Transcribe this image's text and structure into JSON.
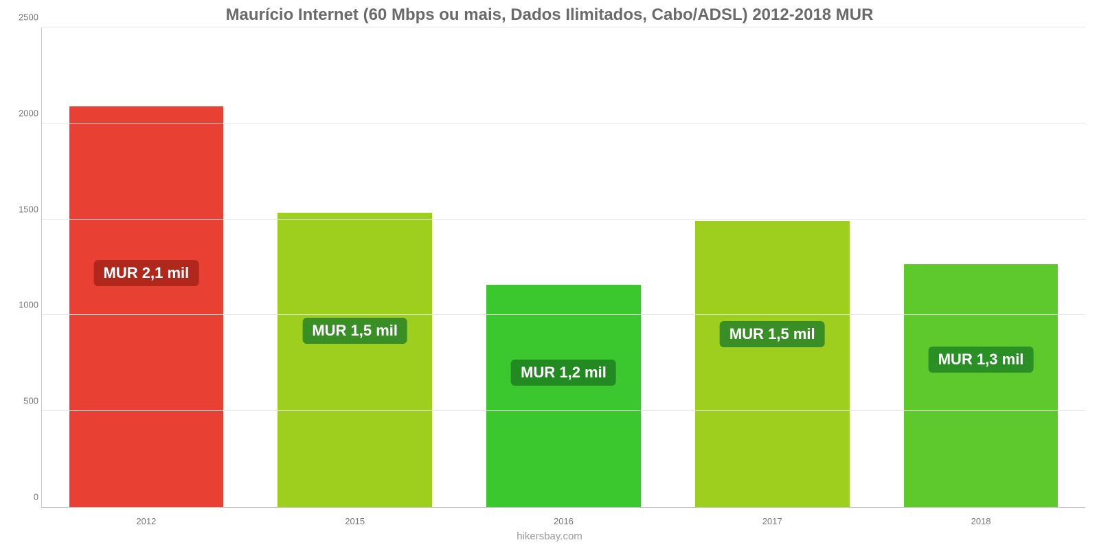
{
  "chart": {
    "type": "bar",
    "title": "Maurício Internet (60 Mbps ou mais, Dados Ilimitados, Cabo/ADSL) 2012-2018 MUR",
    "title_color": "#6a6a6a",
    "title_fontsize": 24,
    "caption": "hikersbay.com",
    "caption_color": "#9a9a9a",
    "caption_fontsize": 15,
    "background_color": "#ffffff",
    "grid_color": "#e6e6e6",
    "axis_color": "#c8c8c8",
    "tick_color": "#777777",
    "tick_fontsize": 13,
    "ylim": [
      0,
      2500
    ],
    "ytick_step": 500,
    "yticks": [
      "0",
      "500",
      "1000",
      "1500",
      "2000",
      "2500"
    ],
    "bar_width_pct": 74,
    "label_fontsize": 22,
    "label_text_color": "#ffffff",
    "bars": [
      {
        "category": "2012",
        "value": 2090,
        "color": "#e84033",
        "label": "MUR 2,1 mil",
        "label_bg": "#b0271c",
        "label_y": 1220
      },
      {
        "category": "2015",
        "value": 1535,
        "color": "#9ecf1f",
        "label": "MUR 1,5 mil",
        "label_bg": "#3a8e26",
        "label_y": 920
      },
      {
        "category": "2016",
        "value": 1160,
        "color": "#3ac82e",
        "label": "MUR 1,2 mil",
        "label_bg": "#218b22",
        "label_y": 700
      },
      {
        "category": "2017",
        "value": 1490,
        "color": "#9ecf1f",
        "label": "MUR 1,5 mil",
        "label_bg": "#3a8e26",
        "label_y": 900
      },
      {
        "category": "2018",
        "value": 1265,
        "color": "#5ec92d",
        "label": "MUR 1,3 mil",
        "label_bg": "#2a8f24",
        "label_y": 770
      }
    ]
  }
}
